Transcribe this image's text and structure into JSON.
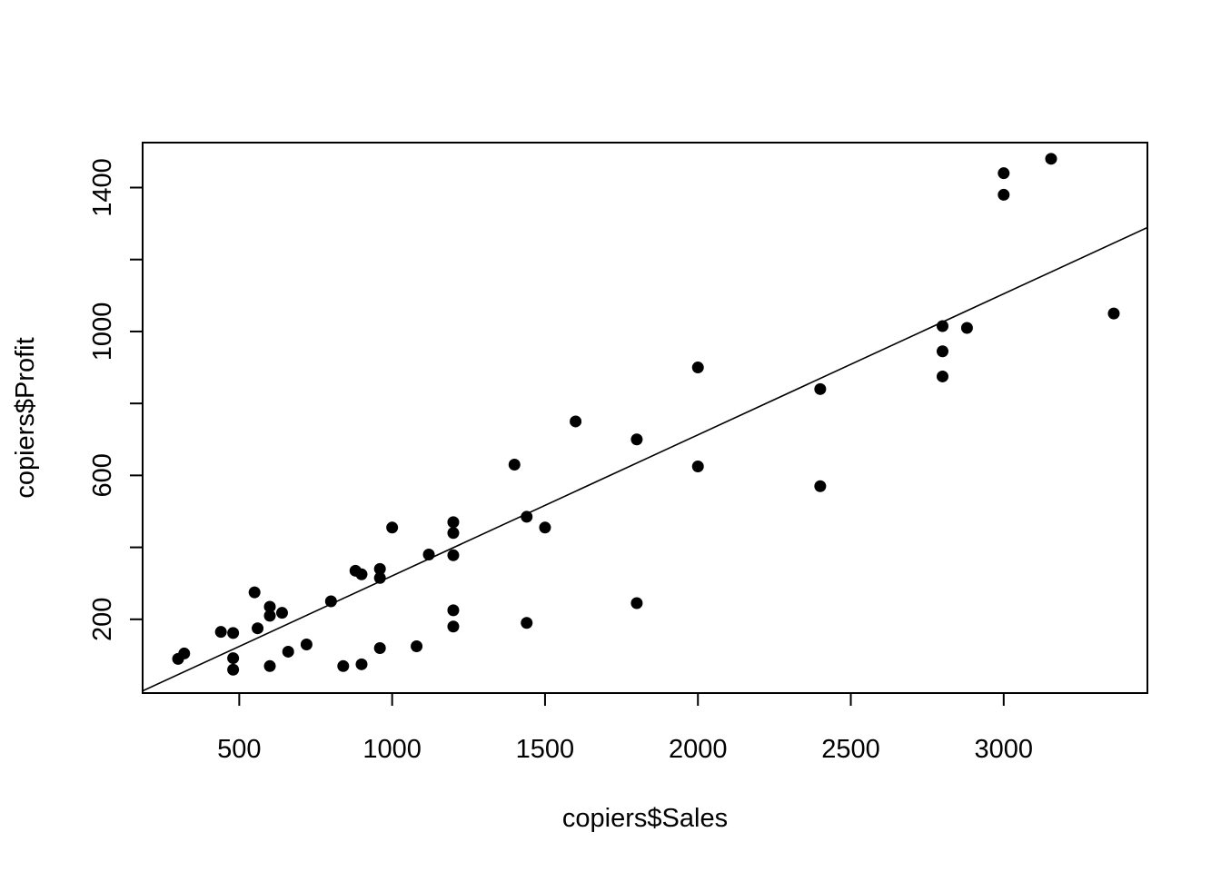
{
  "chart_data": {
    "type": "scatter",
    "title": "",
    "xlabel": "copiers$Sales",
    "ylabel": "copiers$Profit",
    "xlim": [
      184,
      3470
    ],
    "ylim": [
      -5,
      1525
    ],
    "xticks": [
      500,
      1000,
      1500,
      2000,
      2500,
      3000
    ],
    "xtick_labels": [
      "500",
      "1000",
      "1500",
      "2000",
      "2500",
      "3000"
    ],
    "yticks": [
      200,
      400,
      600,
      800,
      1000,
      1200,
      1400
    ],
    "ytick_labels": [
      "200",
      "",
      "600",
      "",
      "1000",
      "",
      "1400"
    ],
    "grid": false,
    "legend": "none",
    "point_color": "#000000",
    "line_color": "#000000",
    "regression_line": {
      "intercept": -71.3,
      "slope": 0.392
    },
    "series": [
      {
        "x": [
          300,
          320,
          440,
          480,
          480,
          480,
          550,
          560,
          600,
          600,
          600,
          640,
          660,
          720,
          800,
          840,
          880,
          900,
          900,
          960,
          960,
          960,
          1000,
          1080,
          1120,
          1200,
          1200,
          1200,
          1200,
          1200,
          1400,
          1440,
          1440,
          1500,
          1600,
          1800,
          1800,
          2000,
          2000,
          2400,
          2400,
          2800,
          2800,
          2800,
          2880,
          3000,
          3000,
          3155,
          3360
        ],
        "y": [
          90,
          105,
          165,
          162,
          92,
          60,
          275,
          175,
          235,
          210,
          70,
          218,
          110,
          130,
          250,
          70,
          335,
          75,
          325,
          340,
          315,
          120,
          455,
          125,
          380,
          470,
          440,
          378,
          225,
          180,
          630,
          485,
          190,
          455,
          750,
          700,
          245,
          900,
          625,
          840,
          570,
          1015,
          945,
          875,
          1010,
          1440,
          1380,
          1480,
          1050
        ]
      }
    ]
  }
}
